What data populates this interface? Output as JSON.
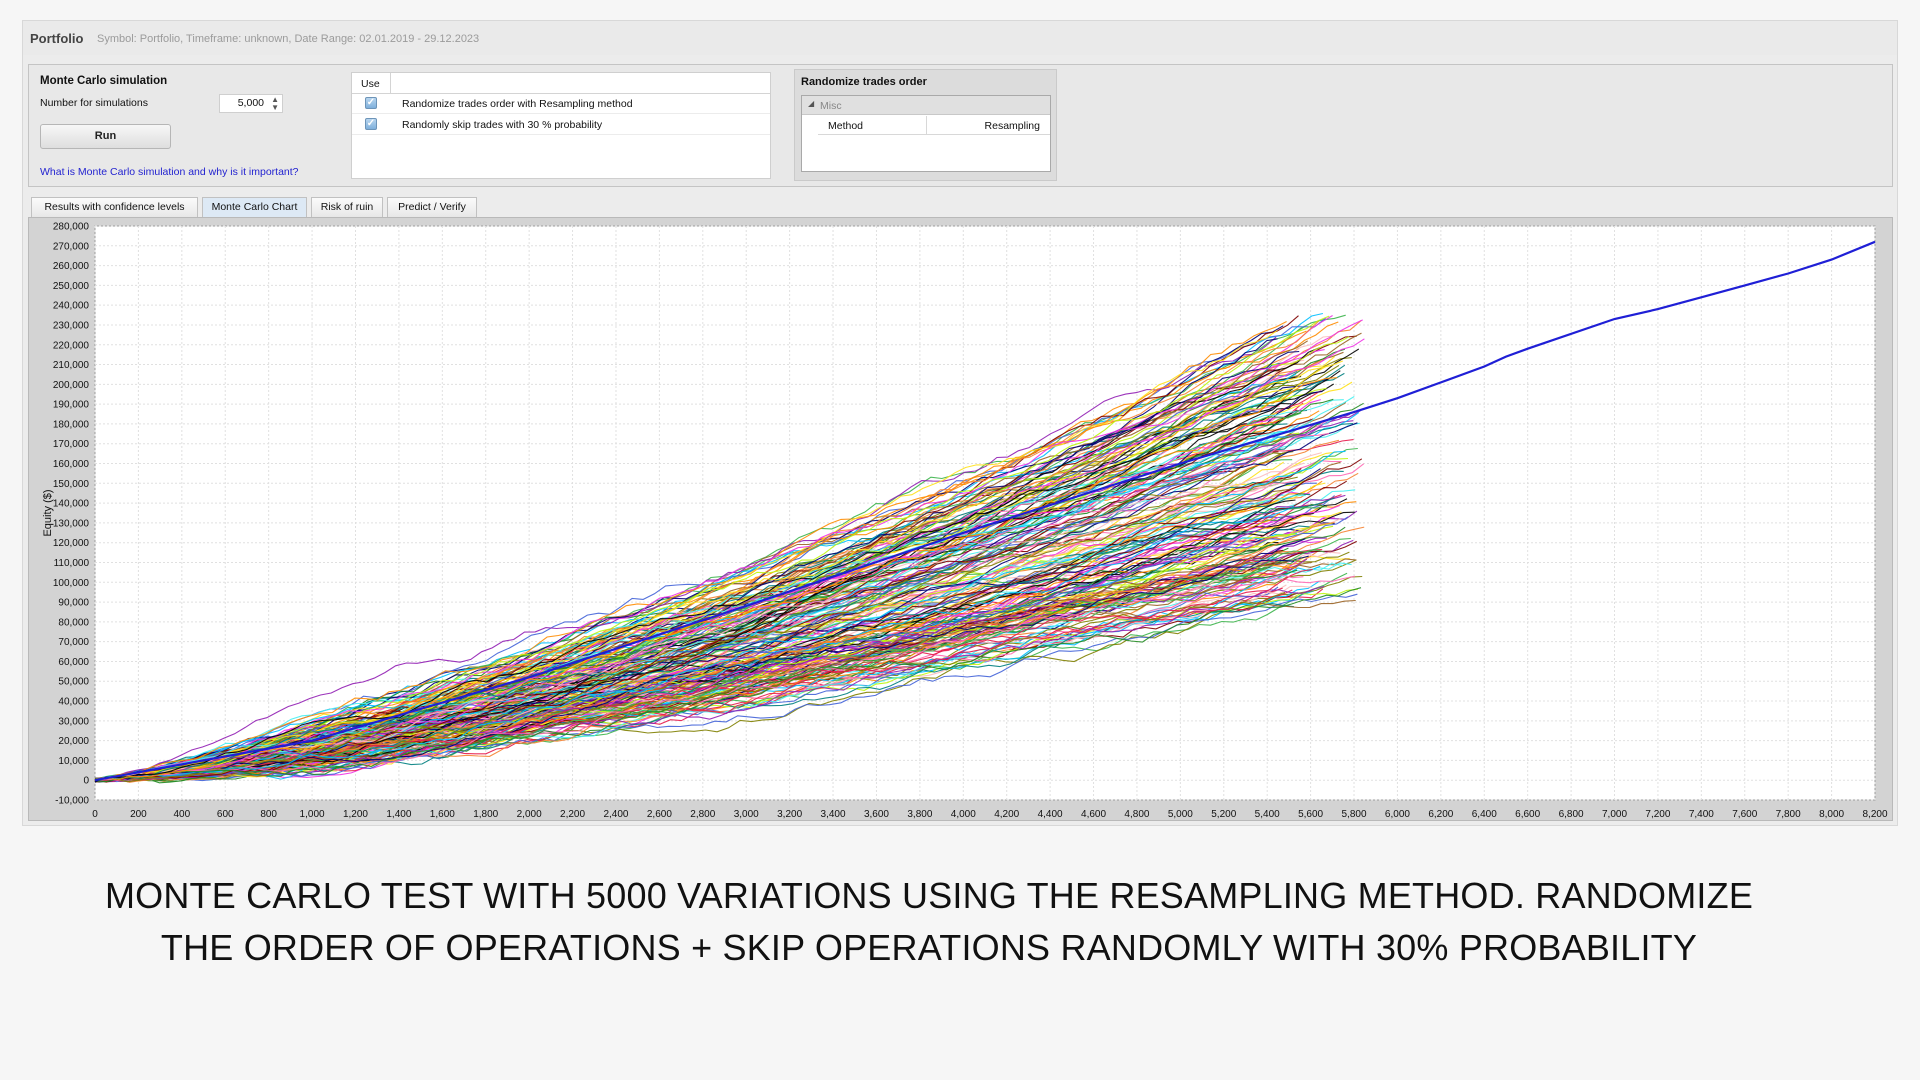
{
  "window": {
    "title": "Portfolio",
    "subtitle": "Symbol: Portfolio, Timeframe: unknown, Date Range: 02.01.2019 - 29.12.2023"
  },
  "monte_carlo": {
    "section_title": "Monte Carlo simulation",
    "num_sims_label": "Number for simulations",
    "num_sims_value": "5,000",
    "run_label": "Run",
    "help_link": "What is Monte Carlo simulation and why is it important?"
  },
  "options": {
    "header_use": "Use",
    "rows": [
      {
        "checked": true,
        "label": "Randomize trades order with Resampling method"
      },
      {
        "checked": true,
        "label": "Randomly skip trades with 30 % probability"
      }
    ]
  },
  "randomize_panel": {
    "title": "Randomize trades order",
    "group": "Misc",
    "property_name": "Method",
    "property_value": "Resampling"
  },
  "tabs": [
    {
      "label": "Results with confidence levels",
      "active": false
    },
    {
      "label": "Monte Carlo Chart",
      "active": true
    },
    {
      "label": "Risk of ruin",
      "active": false
    },
    {
      "label": "Predict / Verify",
      "active": false
    }
  ],
  "chart_data": {
    "type": "line",
    "ylabel": "Equity ($)",
    "xlabel": "",
    "xlim": [
      0,
      8200
    ],
    "ylim": [
      -10000,
      280000
    ],
    "x_ticks": [
      0,
      200,
      400,
      600,
      800,
      1000,
      1200,
      1400,
      1600,
      1800,
      2000,
      2200,
      2400,
      2600,
      2800,
      3000,
      3200,
      3400,
      3600,
      3800,
      4000,
      4200,
      4400,
      4600,
      4800,
      5000,
      5200,
      5400,
      5600,
      5800,
      6000,
      6200,
      6400,
      6600,
      6800,
      7000,
      7200,
      7400,
      7600,
      7800,
      8000,
      8200
    ],
    "y_ticks": [
      -10000,
      0,
      10000,
      20000,
      30000,
      40000,
      50000,
      60000,
      70000,
      80000,
      90000,
      100000,
      110000,
      120000,
      130000,
      140000,
      150000,
      160000,
      170000,
      180000,
      190000,
      200000,
      210000,
      220000,
      230000,
      240000,
      250000,
      260000,
      270000,
      280000
    ],
    "grid": true,
    "series": [
      {
        "color": "#1f1fd6",
        "x": [
          0,
          1000,
          2000,
          3000,
          4000,
          5000,
          5800,
          6000,
          6200,
          6400,
          6500,
          6600,
          7000,
          7200,
          7400,
          7600,
          7800,
          8000,
          8200
        ],
        "values": [
          0,
          20000,
          52000,
          88000,
          125000,
          160000,
          186000,
          193000,
          201000,
          209000,
          214000,
          218000,
          233000,
          238000,
          244000,
          250000,
          256000,
          263000,
          272000
        ]
      }
    ],
    "simulation_envelope": {
      "x_end": 5850,
      "upper_end": 236000,
      "lower_end": 92000,
      "lower_start": -4000,
      "line_colors": [
        "#e6194b",
        "#3cb44b",
        "#ffe119",
        "#4363d8",
        "#f58231",
        "#911eb4",
        "#46f0f0",
        "#f032e6",
        "#bcf60c",
        "#fabebe",
        "#008080",
        "#9a6324",
        "#800000",
        "#000075",
        "#808000",
        "#ff69b4",
        "#00bfff",
        "#228b22",
        "#000000",
        "#ff8c00"
      ]
    }
  },
  "caption": {
    "line1": "MONTE CARLO TEST WITH 5000 VARIATIONS USING THE RESAMPLING METHOD. RANDOMIZE",
    "line2": "THE ORDER OF OPERATIONS + SKIP OPERATIONS RANDOMLY WITH 30% PROBABILITY"
  }
}
